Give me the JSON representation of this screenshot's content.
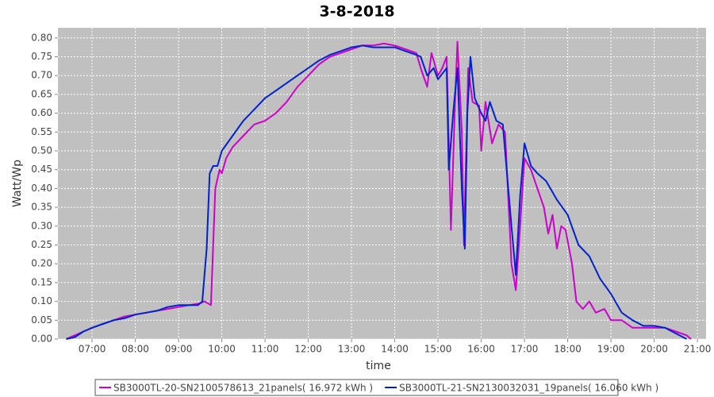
{
  "chart_data": {
    "type": "line",
    "title": "3-8-2018",
    "x_label": "time",
    "y_label": "Watt/Wp",
    "xlim": [
      6.21,
      21.2
    ],
    "ylim": [
      0,
      0.827
    ],
    "grid": true,
    "legend": "bottom",
    "xticks": [
      {
        "value": 7,
        "label": "07:00"
      },
      {
        "value": 8,
        "label": "08:00"
      },
      {
        "value": 9,
        "label": "09:00"
      },
      {
        "value": 10,
        "label": "10:00"
      },
      {
        "value": 11,
        "label": "11:00"
      },
      {
        "value": 12,
        "label": "12:00"
      },
      {
        "value": 13,
        "label": "13:00"
      },
      {
        "value": 14,
        "label": "14:00"
      },
      {
        "value": 15,
        "label": "15:00"
      },
      {
        "value": 16,
        "label": "16:00"
      },
      {
        "value": 17,
        "label": "17:00"
      },
      {
        "value": 18,
        "label": "18:00"
      },
      {
        "value": 19,
        "label": "19:00"
      },
      {
        "value": 20,
        "label": "20:00"
      },
      {
        "value": 21,
        "label": "21:00"
      }
    ],
    "yticks": [
      {
        "value": 0,
        "label": "0.00"
      },
      0.05,
      {
        "value": 0.1,
        "label": "0.10"
      },
      0.15,
      {
        "value": 0.2,
        "label": "0.20"
      },
      0.25,
      {
        "value": 0.3,
        "label": "0.30"
      },
      0.35,
      {
        "value": 0.4,
        "label": "0.40"
      },
      0.45,
      {
        "value": 0.5,
        "label": "0.50"
      },
      0.55,
      {
        "value": 0.6,
        "label": "0.60"
      },
      0.65,
      {
        "value": 0.7,
        "label": "0.70"
      },
      0.75,
      {
        "value": 0.8,
        "label": "0.80"
      }
    ],
    "series": [
      {
        "name": "SB3000TL-20-SN2100578613_21panels( 16.972 kWh )",
        "color": "#cc00cc",
        "x": [
          6.4,
          6.6,
          6.8,
          7.0,
          7.25,
          7.5,
          7.75,
          8.0,
          8.25,
          8.5,
          8.75,
          9.0,
          9.25,
          9.5,
          9.6,
          9.75,
          9.85,
          9.95,
          10.0,
          10.1,
          10.25,
          10.5,
          10.75,
          11.0,
          11.25,
          11.5,
          11.75,
          12.0,
          12.25,
          12.5,
          12.75,
          13.0,
          13.25,
          13.5,
          13.75,
          14.0,
          14.25,
          14.5,
          14.6,
          14.75,
          14.85,
          15.0,
          15.1,
          15.2,
          15.3,
          15.4,
          15.45,
          15.55,
          15.6,
          15.7,
          15.8,
          15.95,
          16.0,
          16.1,
          16.25,
          16.4,
          16.55,
          16.7,
          16.8,
          16.9,
          17.0,
          17.15,
          17.3,
          17.45,
          17.55,
          17.65,
          17.75,
          17.85,
          17.95,
          18.1,
          18.2,
          18.35,
          18.5,
          18.65,
          18.85,
          19.0,
          19.25,
          19.5,
          19.75,
          20.0,
          20.25,
          20.5,
          20.75,
          20.85
        ],
        "values": [
          0.0,
          0.01,
          0.02,
          0.03,
          0.04,
          0.05,
          0.06,
          0.065,
          0.07,
          0.075,
          0.08,
          0.085,
          0.09,
          0.095,
          0.1,
          0.09,
          0.4,
          0.45,
          0.44,
          0.48,
          0.51,
          0.54,
          0.57,
          0.58,
          0.6,
          0.63,
          0.67,
          0.7,
          0.73,
          0.75,
          0.76,
          0.77,
          0.78,
          0.78,
          0.785,
          0.78,
          0.77,
          0.76,
          0.72,
          0.67,
          0.76,
          0.7,
          0.72,
          0.75,
          0.29,
          0.65,
          0.79,
          0.55,
          0.25,
          0.72,
          0.63,
          0.62,
          0.5,
          0.63,
          0.52,
          0.57,
          0.55,
          0.2,
          0.13,
          0.3,
          0.48,
          0.45,
          0.4,
          0.35,
          0.28,
          0.33,
          0.24,
          0.3,
          0.29,
          0.2,
          0.1,
          0.08,
          0.1,
          0.07,
          0.08,
          0.05,
          0.05,
          0.03,
          0.03,
          0.03,
          0.03,
          0.02,
          0.01,
          0.0
        ]
      },
      {
        "name": "SB3000TL-21-SN2130032031_19panels( 16.060 kWh )",
        "color": "#0022cc",
        "x": [
          6.4,
          6.6,
          6.8,
          7.0,
          7.25,
          7.5,
          7.75,
          8.0,
          8.25,
          8.5,
          8.75,
          9.0,
          9.25,
          9.45,
          9.55,
          9.65,
          9.72,
          9.8,
          9.9,
          10.0,
          10.25,
          10.5,
          10.75,
          11.0,
          11.25,
          11.5,
          11.75,
          12.0,
          12.25,
          12.5,
          12.75,
          13.0,
          13.25,
          13.5,
          13.75,
          14.0,
          14.25,
          14.5,
          14.6,
          14.75,
          14.9,
          15.0,
          15.2,
          15.25,
          15.35,
          15.45,
          15.55,
          15.62,
          15.68,
          15.75,
          15.85,
          16.0,
          16.1,
          16.2,
          16.35,
          16.5,
          16.7,
          16.8,
          16.9,
          17.0,
          17.15,
          17.3,
          17.5,
          17.75,
          18.0,
          18.25,
          18.5,
          18.75,
          19.0,
          19.25,
          19.5,
          19.75,
          20.0,
          20.25,
          20.5,
          20.75
        ],
        "values": [
          0.0,
          0.005,
          0.02,
          0.03,
          0.04,
          0.05,
          0.055,
          0.065,
          0.07,
          0.075,
          0.085,
          0.09,
          0.09,
          0.09,
          0.1,
          0.24,
          0.44,
          0.46,
          0.46,
          0.5,
          0.54,
          0.58,
          0.61,
          0.64,
          0.66,
          0.68,
          0.7,
          0.72,
          0.74,
          0.755,
          0.765,
          0.775,
          0.78,
          0.775,
          0.775,
          0.775,
          0.765,
          0.755,
          0.75,
          0.7,
          0.72,
          0.69,
          0.72,
          0.45,
          0.6,
          0.72,
          0.4,
          0.24,
          0.6,
          0.75,
          0.64,
          0.6,
          0.58,
          0.63,
          0.58,
          0.57,
          0.3,
          0.17,
          0.38,
          0.52,
          0.46,
          0.44,
          0.42,
          0.37,
          0.33,
          0.25,
          0.22,
          0.16,
          0.12,
          0.07,
          0.05,
          0.035,
          0.035,
          0.03,
          0.015,
          0.0
        ]
      }
    ]
  }
}
